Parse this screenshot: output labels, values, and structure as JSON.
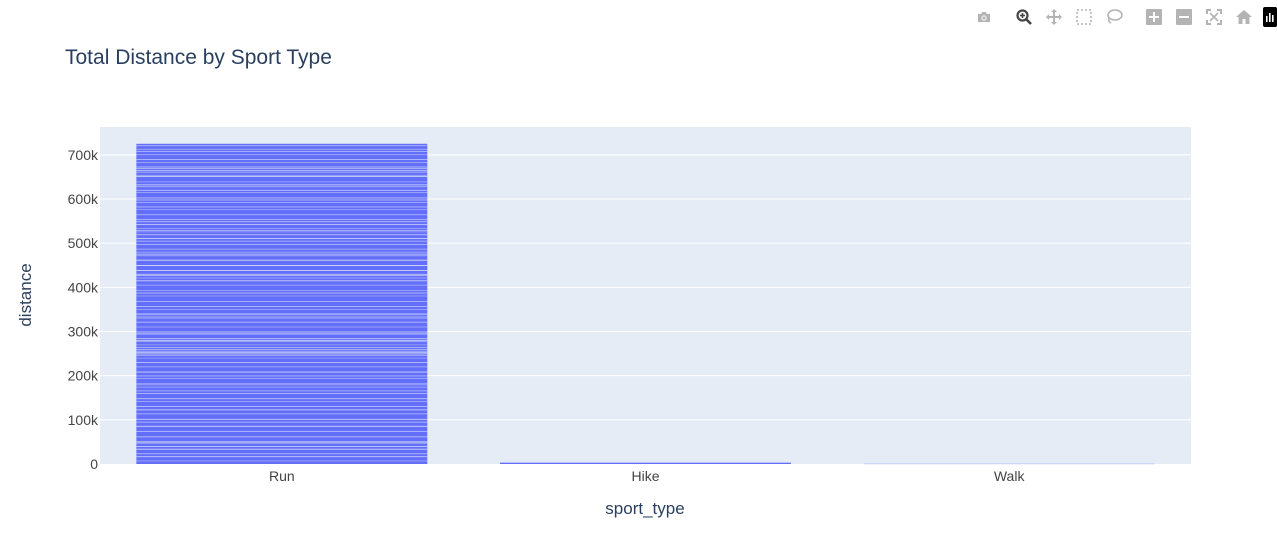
{
  "modebar": {
    "buttons": [
      {
        "name": "camera-icon",
        "group": 1
      },
      {
        "name": "zoom-icon",
        "group": 2
      },
      {
        "name": "pan-icon",
        "group": 2
      },
      {
        "name": "box-select-icon",
        "group": 2
      },
      {
        "name": "lasso-select-icon",
        "group": 2
      },
      {
        "name": "zoom-in-icon",
        "group": 3
      },
      {
        "name": "zoom-out-icon",
        "group": 3
      },
      {
        "name": "autoscale-icon",
        "group": 3
      },
      {
        "name": "reset-axes-icon",
        "group": 3
      },
      {
        "name": "plotly-logo-icon",
        "group": 4
      }
    ],
    "icon_color": "#b4b4b4",
    "active_color": "#444444"
  },
  "chart_data": {
    "type": "bar",
    "title": "Total Distance by Sport Type",
    "xlabel": "sport_type",
    "ylabel": "distance",
    "categories": [
      "Run",
      "Hike",
      "Walk"
    ],
    "values": [
      725000,
      3000,
      1500
    ],
    "ylim": [
      0,
      763000
    ],
    "yticks": [
      0,
      100000,
      200000,
      300000,
      400000,
      500000,
      600000,
      700000
    ],
    "ytick_labels": [
      "0",
      "100k",
      "200k",
      "300k",
      "400k",
      "500k",
      "600k",
      "700k"
    ],
    "grid": true,
    "bar_color": "#636efa",
    "plot_bg": "#e5ecf6",
    "text_color": "#2a3f5f",
    "tick_color": "#444444"
  }
}
